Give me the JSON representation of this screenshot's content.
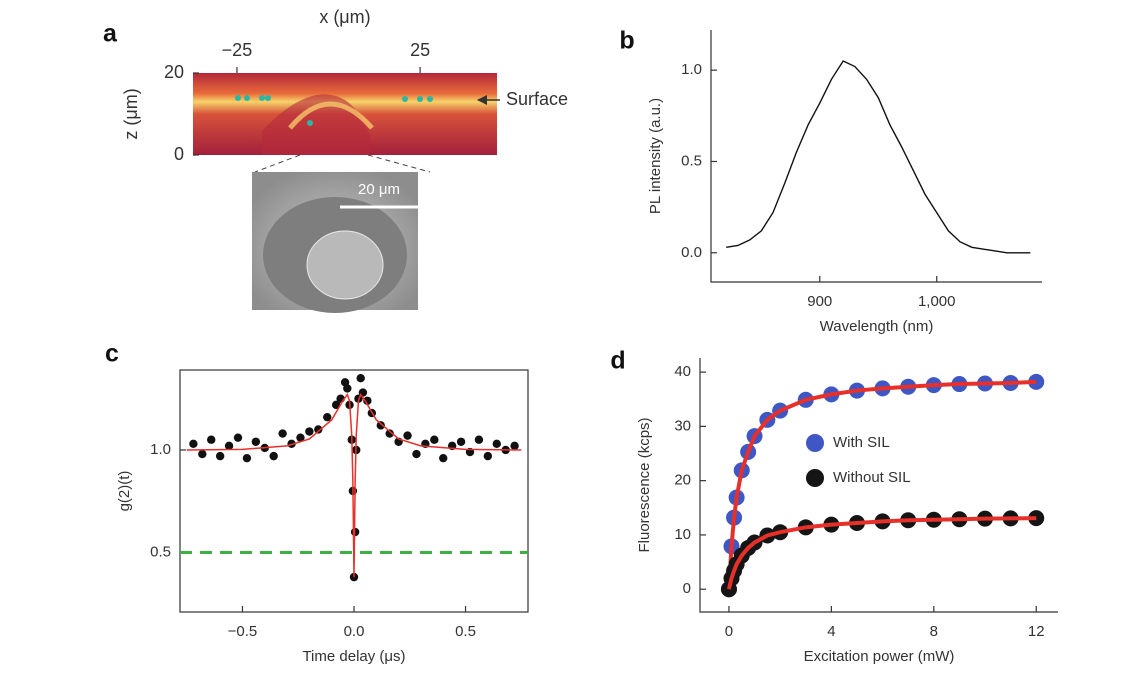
{
  "chart_data": [
    {
      "type": "image",
      "panel": "a",
      "xlabel": "x (μm)",
      "ylabel": "z (μm)",
      "xlim": [
        -37,
        46
      ],
      "ylim": [
        0,
        20
      ],
      "xticks": [
        {
          "value": -25,
          "label": "−25"
        },
        25
      ],
      "yticks": [
        0,
        20
      ],
      "annotation": "Surface",
      "scale_bar": "20 μm"
    },
    {
      "type": "line",
      "panel": "b",
      "xlabel": "Wavelength (nm)",
      "ylabel": "PL intensity (a.u.)",
      "color": "#111111",
      "x": [
        820,
        830,
        840,
        850,
        860,
        870,
        880,
        890,
        900,
        910,
        920,
        930,
        940,
        950,
        960,
        970,
        980,
        990,
        1000,
        1010,
        1020,
        1030,
        1040,
        1050,
        1060,
        1070,
        1080
      ],
      "values": [
        0.03,
        0.04,
        0.07,
        0.12,
        0.22,
        0.38,
        0.55,
        0.7,
        0.82,
        0.95,
        1.05,
        1.02,
        0.95,
        0.85,
        0.7,
        0.58,
        0.45,
        0.32,
        0.22,
        0.12,
        0.06,
        0.03,
        0.02,
        0.01,
        0.0,
        0.0,
        0.0
      ],
      "xlim": [
        807,
        1090
      ],
      "ylim": [
        -0.16,
        1.22
      ],
      "xticks": [
        900,
        {
          "value": 1000,
          "label": "1,000"
        }
      ],
      "yticks": [
        {
          "value": 0,
          "label": "0.0"
        },
        {
          "value": 0.5,
          "label": "0.5"
        },
        {
          "value": 1,
          "label": "1.0"
        }
      ]
    },
    {
      "type": "scatter",
      "panel": "c",
      "xlabel": "Time delay (μs)",
      "ylabel": "g(2)(t)",
      "xlim": [
        -0.78,
        0.78
      ],
      "ylim": [
        0.21,
        1.39
      ],
      "xticks": [
        {
          "value": -0.5,
          "label": "−0.5"
        },
        {
          "value": 0,
          "label": "0.0"
        },
        {
          "value": 0.5,
          "label": "0.5"
        }
      ],
      "yticks": [
        {
          "value": 0.5,
          "label": "0.5"
        },
        {
          "value": 1,
          "label": "1.0"
        }
      ],
      "reference_line": {
        "value": 0.5,
        "color": "#3cb043"
      },
      "series": [
        {
          "color": "#111111",
          "x": [
            -0.72,
            -0.68,
            -0.64,
            -0.6,
            -0.56,
            -0.52,
            -0.48,
            -0.44,
            -0.4,
            -0.36,
            -0.32,
            -0.28,
            -0.24,
            -0.2,
            -0.16,
            -0.12,
            -0.08,
            -0.06,
            -0.04,
            -0.03,
            -0.02,
            -0.01,
            -0.005,
            0,
            0.005,
            0.01,
            0.02,
            0.03,
            0.04,
            0.06,
            0.08,
            0.12,
            0.16,
            0.2,
            0.24,
            0.28,
            0.32,
            0.36,
            0.4,
            0.44,
            0.48,
            0.52,
            0.56,
            0.6,
            0.64,
            0.68,
            0.72
          ],
          "values": [
            1.03,
            0.98,
            1.05,
            0.97,
            1.02,
            1.06,
            0.96,
            1.04,
            1.01,
            0.97,
            1.08,
            1.03,
            1.06,
            1.09,
            1.1,
            1.16,
            1.22,
            1.25,
            1.33,
            1.3,
            1.22,
            1.05,
            0.8,
            0.38,
            0.6,
            1.0,
            1.25,
            1.35,
            1.28,
            1.24,
            1.18,
            1.12,
            1.08,
            1.04,
            1.07,
            0.98,
            1.03,
            1.05,
            0.96,
            1.02,
            1.04,
            0.99,
            1.05,
            0.97,
            1.03,
            1.0,
            1.02
          ]
        },
        {
          "color": "#e8302a",
          "line": true,
          "x": [
            -0.75,
            -0.5,
            -0.3,
            -0.2,
            -0.1,
            -0.05,
            -0.03,
            -0.02,
            -0.01,
            -0.005,
            0,
            0.005,
            0.01,
            0.02,
            0.03,
            0.05,
            0.1,
            0.2,
            0.3,
            0.5,
            0.75
          ],
          "values": [
            1.0,
            1.003,
            1.02,
            1.054,
            1.147,
            1.24,
            1.27,
            1.24,
            1.07,
            0.84,
            0.38,
            0.84,
            1.07,
            1.24,
            1.27,
            1.24,
            1.147,
            1.054,
            1.02,
            1.003,
            1.0
          ]
        }
      ]
    },
    {
      "type": "scatter",
      "panel": "d",
      "xlabel": "Excitation power (mW)",
      "ylabel": "Fluorescence (kcps)",
      "xlim": [
        -1.13,
        12.85
      ],
      "ylim": [
        -4.2,
        42.6
      ],
      "xticks": [
        0,
        4,
        8,
        12
      ],
      "yticks": [
        0,
        10,
        20,
        30,
        40
      ],
      "fit_color": "#e8302a",
      "series": [
        {
          "name": "With SIL",
          "color": "#3f57c4",
          "x": [
            0,
            0.1,
            0.2,
            0.3,
            0.5,
            0.75,
            1,
            1.5,
            2,
            3,
            4,
            5,
            6,
            7,
            8,
            9,
            10,
            11,
            12
          ],
          "values": [
            0,
            7.9,
            13.2,
            16.9,
            21.9,
            25.3,
            28.2,
            31.2,
            32.9,
            34.9,
            35.9,
            36.6,
            37.0,
            37.3,
            37.6,
            37.8,
            37.9,
            38.0,
            38.2
          ]
        },
        {
          "name": "Without SIL",
          "color": "#151515",
          "x": [
            0,
            0.1,
            0.2,
            0.3,
            0.5,
            0.75,
            1,
            1.5,
            2,
            3,
            4,
            5,
            6,
            7,
            8,
            9,
            10,
            11,
            12
          ],
          "values": [
            0,
            2.0,
            3.4,
            4.6,
            6.2,
            7.6,
            8.6,
            9.9,
            10.5,
            11.4,
            11.9,
            12.2,
            12.5,
            12.7,
            12.8,
            12.9,
            13.0,
            13.05,
            13.1
          ]
        }
      ]
    }
  ]
}
